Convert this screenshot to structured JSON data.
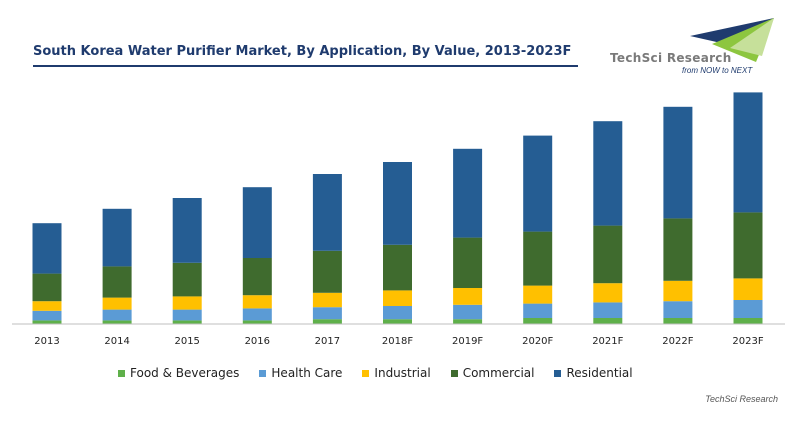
{
  "title": "South Korea Water Purifier Market, By Application, By Value, 2013-2023F",
  "logo": {
    "name": "TechSci Research",
    "brand_text": "TechSci Research",
    "tagline": "from NOW to NEXT",
    "colors": {
      "gray": "#8c8c8c",
      "green": "#8dc63f",
      "navy": "#1f3b6e"
    }
  },
  "source": "TechSci Research",
  "chart_data": {
    "type": "bar",
    "stacked": true,
    "categories": [
      "2013",
      "2014",
      "2015",
      "2016",
      "2017",
      "2018F",
      "2019F",
      "2020F",
      "2021F",
      "2022F",
      "2023F"
    ],
    "series": [
      {
        "name": "Food & Beverages",
        "color": "#5fb04a",
        "values": [
          3,
          3,
          3,
          3,
          4,
          4,
          4,
          5,
          5,
          5,
          5
        ]
      },
      {
        "name": "Health Care",
        "color": "#5b9bd5",
        "values": [
          8,
          9,
          9,
          10,
          10,
          11,
          12,
          12,
          13,
          14,
          15
        ]
      },
      {
        "name": "Industrial",
        "color": "#ffc000",
        "values": [
          8,
          10,
          11,
          11,
          12,
          13,
          14,
          15,
          16,
          17,
          18
        ]
      },
      {
        "name": "Commercial",
        "color": "#3f6b2e",
        "values": [
          23,
          26,
          28,
          31,
          35,
          38,
          42,
          45,
          48,
          52,
          55
        ]
      },
      {
        "name": "Residential",
        "color": "#255d93",
        "values": [
          42,
          48,
          54,
          59,
          64,
          69,
          74,
          80,
          87,
          93,
          100
        ]
      }
    ],
    "ylim": [
      0,
      200
    ],
    "grid": false,
    "legend_position": "bottom"
  }
}
